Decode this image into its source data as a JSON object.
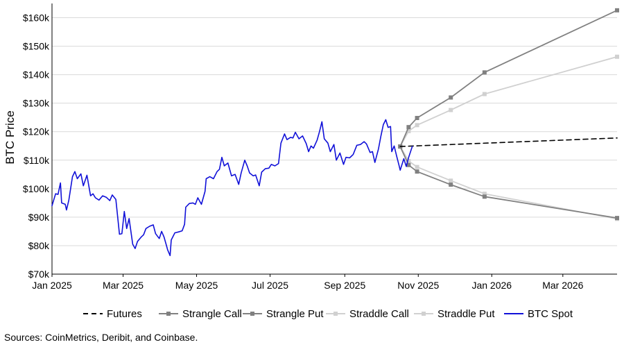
{
  "chart_data": {
    "type": "line",
    "ylabel": "BTC Price",
    "ylim": [
      70000,
      165000
    ],
    "y_ticks": [
      70000,
      80000,
      90000,
      100000,
      110000,
      120000,
      130000,
      140000,
      150000,
      160000
    ],
    "y_tick_labels": [
      "$70k",
      "$80k",
      "$90k",
      "$100k",
      "$110k",
      "$120k",
      "$130k",
      "$140k",
      "$150k",
      "$160k"
    ],
    "xlim": [
      "2025-01-01",
      "2026-04-15"
    ],
    "x_ticks": [
      "2025-01-01",
      "2025-03-01",
      "2025-05-01",
      "2025-07-01",
      "2025-09-01",
      "2025-11-01",
      "2026-01-01",
      "2026-03-01"
    ],
    "x_tick_labels": [
      "Jan 2025",
      "Mar 2025",
      "May 2025",
      "Jul 2025",
      "Sep 2025",
      "Nov 2025",
      "Jan 2026",
      "Mar 2026"
    ],
    "grid": "horizontal",
    "legend_position": "bottom",
    "series": [
      {
        "name": "Futures",
        "color": "#000000",
        "style": "dashed",
        "markers": false,
        "points": [
          [
            "2025-10-17",
            114800
          ],
          [
            "2026-04-15",
            117800
          ]
        ]
      },
      {
        "name": "Strangle Call",
        "color": "#808080",
        "style": "solid",
        "markers": true,
        "points": [
          [
            "2025-10-17",
            114800
          ],
          [
            "2025-10-24",
            121600
          ],
          [
            "2025-10-31",
            124800
          ],
          [
            "2025-11-28",
            132000
          ],
          [
            "2025-12-26",
            140800
          ],
          [
            "2026-04-15",
            162600
          ]
        ]
      },
      {
        "name": "Strangle Put",
        "color": "#808080",
        "style": "solid",
        "markers": true,
        "points": [
          [
            "2025-10-17",
            114800
          ],
          [
            "2025-10-24",
            108300
          ],
          [
            "2025-10-31",
            106000
          ],
          [
            "2025-11-28",
            101400
          ],
          [
            "2025-12-26",
            97200
          ],
          [
            "2026-04-15",
            89700
          ]
        ]
      },
      {
        "name": "Straddle Call",
        "color": "#d0d0d0",
        "style": "solid",
        "markers": true,
        "points": [
          [
            "2025-10-17",
            114800
          ],
          [
            "2025-10-24",
            120200
          ],
          [
            "2025-10-31",
            122300
          ],
          [
            "2025-11-28",
            127600
          ],
          [
            "2025-12-26",
            133200
          ],
          [
            "2026-04-15",
            146300
          ]
        ]
      },
      {
        "name": "Straddle Put",
        "color": "#d0d0d0",
        "style": "solid",
        "markers": true,
        "points": [
          [
            "2025-10-17",
            114800
          ],
          [
            "2025-10-24",
            109700
          ],
          [
            "2025-10-31",
            107600
          ],
          [
            "2025-11-28",
            102800
          ],
          [
            "2025-12-26",
            98200
          ],
          [
            "2026-04-15",
            89400
          ]
        ]
      },
      {
        "name": "BTC Spot",
        "color": "#1010d8",
        "style": "solid",
        "markers": false,
        "points": [
          [
            "2025-01-01",
            94000
          ],
          [
            "2025-01-04",
            98200
          ],
          [
            "2025-01-06",
            98000
          ],
          [
            "2025-01-08",
            102000
          ],
          [
            "2025-01-09",
            95000
          ],
          [
            "2025-01-12",
            94500
          ],
          [
            "2025-01-13",
            92500
          ],
          [
            "2025-01-15",
            96000
          ],
          [
            "2025-01-18",
            104200
          ],
          [
            "2025-01-20",
            106000
          ],
          [
            "2025-01-22",
            103500
          ],
          [
            "2025-01-25",
            105200
          ],
          [
            "2025-01-27",
            101000
          ],
          [
            "2025-01-30",
            104700
          ],
          [
            "2025-02-02",
            97500
          ],
          [
            "2025-02-04",
            98200
          ],
          [
            "2025-02-06",
            96800
          ],
          [
            "2025-02-09",
            96000
          ],
          [
            "2025-02-12",
            97500
          ],
          [
            "2025-02-15",
            97000
          ],
          [
            "2025-02-18",
            95800
          ],
          [
            "2025-02-20",
            97800
          ],
          [
            "2025-02-23",
            96200
          ],
          [
            "2025-02-25",
            88000
          ],
          [
            "2025-02-26",
            84000
          ],
          [
            "2025-02-28",
            84200
          ],
          [
            "2025-03-02",
            92000
          ],
          [
            "2025-03-04",
            86000
          ],
          [
            "2025-03-06",
            89500
          ],
          [
            "2025-03-09",
            80500
          ],
          [
            "2025-03-11",
            79000
          ],
          [
            "2025-03-13",
            81500
          ],
          [
            "2025-03-16",
            83000
          ],
          [
            "2025-03-18",
            83800
          ],
          [
            "2025-03-20",
            86000
          ],
          [
            "2025-03-23",
            86800
          ],
          [
            "2025-03-26",
            87300
          ],
          [
            "2025-03-28",
            84200
          ],
          [
            "2025-03-31",
            82500
          ],
          [
            "2025-04-02",
            85000
          ],
          [
            "2025-04-04",
            83000
          ],
          [
            "2025-04-06",
            80000
          ],
          [
            "2025-04-07",
            78500
          ],
          [
            "2025-04-09",
            76500
          ],
          [
            "2025-04-10",
            82000
          ],
          [
            "2025-04-13",
            84500
          ],
          [
            "2025-04-16",
            84800
          ],
          [
            "2025-04-19",
            85200
          ],
          [
            "2025-04-21",
            87500
          ],
          [
            "2025-04-22",
            93500
          ],
          [
            "2025-04-25",
            94800
          ],
          [
            "2025-04-28",
            95000
          ],
          [
            "2025-04-30",
            94500
          ],
          [
            "2025-05-02",
            96800
          ],
          [
            "2025-05-05",
            94500
          ],
          [
            "2025-05-08",
            99000
          ],
          [
            "2025-05-09",
            103500
          ],
          [
            "2025-05-12",
            104200
          ],
          [
            "2025-05-15",
            103500
          ],
          [
            "2025-05-18",
            106000
          ],
          [
            "2025-05-20",
            106800
          ],
          [
            "2025-05-22",
            111000
          ],
          [
            "2025-05-24",
            108000
          ],
          [
            "2025-05-27",
            109000
          ],
          [
            "2025-05-30",
            104500
          ],
          [
            "2025-06-02",
            105000
          ],
          [
            "2025-06-05",
            101500
          ],
          [
            "2025-06-07",
            105500
          ],
          [
            "2025-06-10",
            110000
          ],
          [
            "2025-06-12",
            108000
          ],
          [
            "2025-06-14",
            105500
          ],
          [
            "2025-06-17",
            104500
          ],
          [
            "2025-06-19",
            104800
          ],
          [
            "2025-06-22",
            101000
          ],
          [
            "2025-06-24",
            105800
          ],
          [
            "2025-06-27",
            107000
          ],
          [
            "2025-06-30",
            107200
          ],
          [
            "2025-07-02",
            108500
          ],
          [
            "2025-07-05",
            108000
          ],
          [
            "2025-07-08",
            108800
          ],
          [
            "2025-07-10",
            116000
          ],
          [
            "2025-07-13",
            119200
          ],
          [
            "2025-07-15",
            117200
          ],
          [
            "2025-07-18",
            118000
          ],
          [
            "2025-07-20",
            117800
          ],
          [
            "2025-07-22",
            119800
          ],
          [
            "2025-07-25",
            117500
          ],
          [
            "2025-07-28",
            118500
          ],
          [
            "2025-07-31",
            115800
          ],
          [
            "2025-08-02",
            113000
          ],
          [
            "2025-08-04",
            115000
          ],
          [
            "2025-08-06",
            114200
          ],
          [
            "2025-08-09",
            117000
          ],
          [
            "2025-08-11",
            120000
          ],
          [
            "2025-08-13",
            123500
          ],
          [
            "2025-08-15",
            117500
          ],
          [
            "2025-08-18",
            116000
          ],
          [
            "2025-08-20",
            113000
          ],
          [
            "2025-08-23",
            115500
          ],
          [
            "2025-08-25",
            110000
          ],
          [
            "2025-08-28",
            112500
          ],
          [
            "2025-08-31",
            108500
          ],
          [
            "2025-09-02",
            111000
          ],
          [
            "2025-09-05",
            110800
          ],
          [
            "2025-09-08",
            112000
          ],
          [
            "2025-09-11",
            115200
          ],
          [
            "2025-09-14",
            115500
          ],
          [
            "2025-09-17",
            116500
          ],
          [
            "2025-09-19",
            115700
          ],
          [
            "2025-09-22",
            112700
          ],
          [
            "2025-09-24",
            113000
          ],
          [
            "2025-09-26",
            109200
          ],
          [
            "2025-09-29",
            114000
          ],
          [
            "2025-10-01",
            118500
          ],
          [
            "2025-10-03",
            122500
          ],
          [
            "2025-10-05",
            124200
          ],
          [
            "2025-10-07",
            121500
          ],
          [
            "2025-10-09",
            121800
          ],
          [
            "2025-10-10",
            113000
          ],
          [
            "2025-10-12",
            115000
          ],
          [
            "2025-10-14",
            111500
          ],
          [
            "2025-10-16",
            108200
          ],
          [
            "2025-10-17",
            106500
          ],
          [
            "2025-10-20",
            110500
          ],
          [
            "2025-10-22",
            107800
          ],
          [
            "2025-10-24",
            111000
          ],
          [
            "2025-10-27",
            114800
          ]
        ]
      }
    ]
  },
  "legend": [
    {
      "label": "Futures",
      "color": "#000000",
      "style": "dashed",
      "marker": false
    },
    {
      "label": "Strangle Call",
      "color": "#808080",
      "style": "solid",
      "marker": true
    },
    {
      "label": "Strangle Put",
      "color": "#808080",
      "style": "solid",
      "marker": true
    },
    {
      "label": "Straddle Call",
      "color": "#d0d0d0",
      "style": "solid",
      "marker": true
    },
    {
      "label": "Straddle Put",
      "color": "#d0d0d0",
      "style": "solid",
      "marker": true
    },
    {
      "label": "BTC Spot",
      "color": "#1010d8",
      "style": "solid",
      "marker": false
    }
  ],
  "source": "Sources: CoinMetrics, Deribit, and Coinbase."
}
